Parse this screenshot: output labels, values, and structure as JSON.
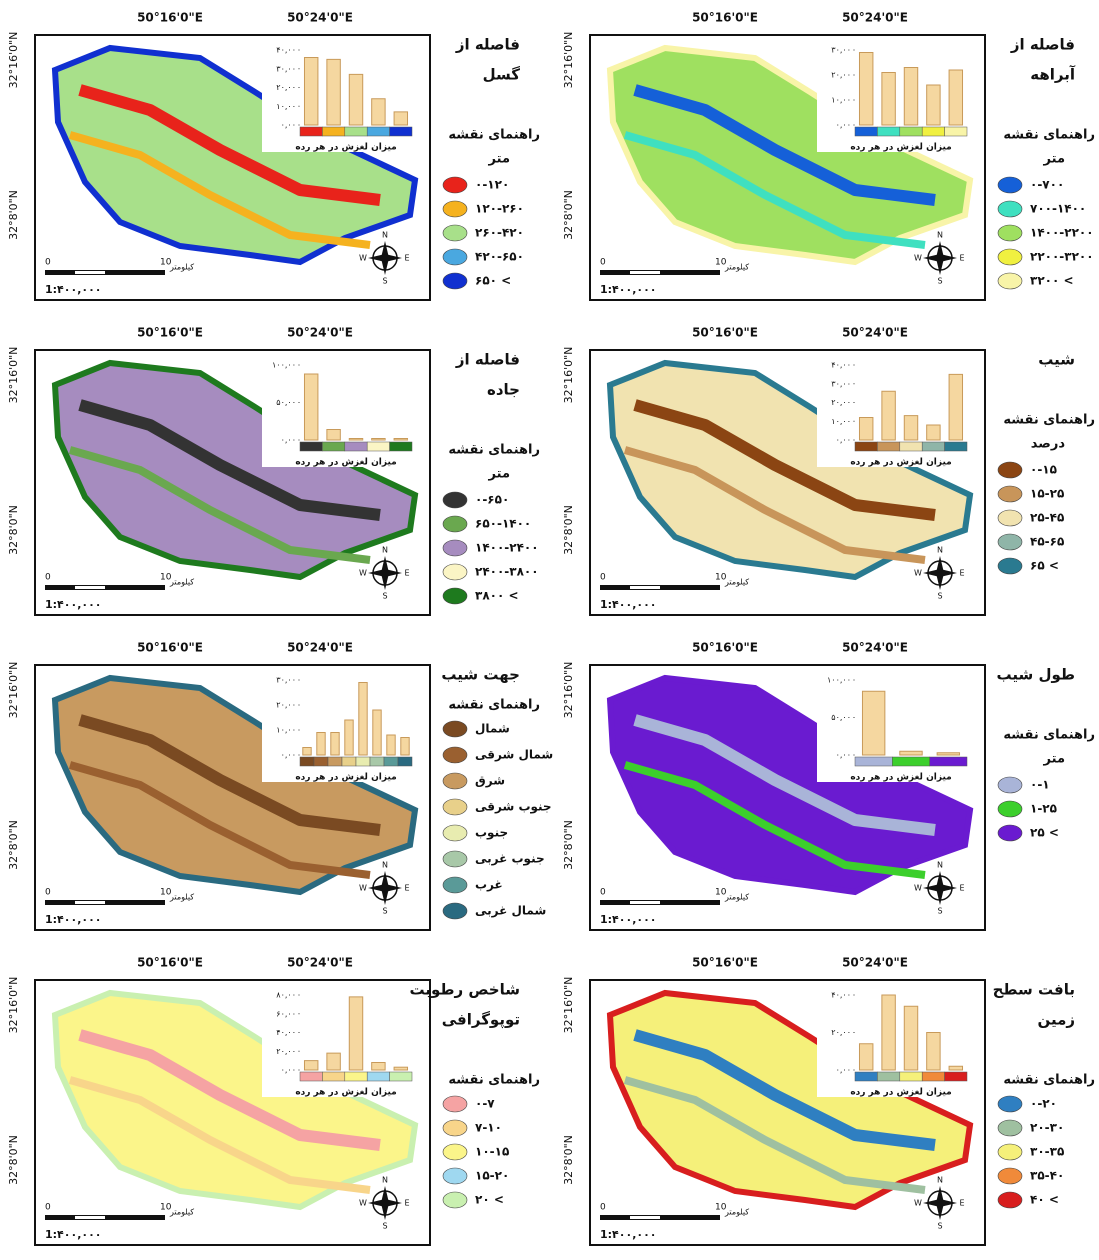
{
  "common": {
    "lon": [
      "50°16'0\"E",
      "50°24'0\"E"
    ],
    "lat": [
      "32°16'0\"N",
      "32°8'0\"N"
    ],
    "scale": "1:۴۰۰,۰۰۰",
    "scale_ticks": [
      "0",
      "10"
    ],
    "km": "کیلومتر",
    "compass": [
      "N",
      "S",
      "W",
      "E"
    ],
    "legend_title": "راهنمای نقشه",
    "chart_caption": "میزان لغزش در هر رده"
  },
  "panels": [
    {
      "title": [
        "فاصله از",
        "گسل"
      ],
      "unit": "متر",
      "legend": [
        {
          "label": "۰-۱۲۰",
          "color": "#e8231b"
        },
        {
          "label": "۱۲۰-۲۶۰",
          "color": "#f5b21f"
        },
        {
          "label": "۲۶۰-۴۲۰",
          "color": "#a8e08a"
        },
        {
          "label": "۴۲۰-۶۵۰",
          "color": "#4aa8e0"
        },
        {
          "label": "۶۵۰ <",
          "color": "#1030d0"
        }
      ],
      "chart": {
        "ylim": [
          0,
          40
        ],
        "yticks": [
          {
            "value": 0,
            "label": "۰,۰۰"
          },
          {
            "value": 10,
            "label": "۱۰,۰۰"
          },
          {
            "value": 20,
            "label": "۲۰,۰۰"
          },
          {
            "value": 30,
            "label": "۳۰,۰۰"
          },
          {
            "value": 40,
            "label": "۴۰,۰۰"
          }
        ],
        "values": [
          36,
          35,
          27,
          14,
          7
        ]
      }
    },
    {
      "title": [
        "فاصله از",
        "آبراهه"
      ],
      "unit": "متر",
      "legend": [
        {
          "label": "۰-۷۰۰",
          "color": "#1560d8"
        },
        {
          "label": "۷۰۰-۱۴۰۰",
          "color": "#3fe0c0"
        },
        {
          "label": "۱۴۰۰-۲۲۰۰",
          "color": "#9fe060"
        },
        {
          "label": "۲۲۰۰-۳۲۰۰",
          "color": "#f0f040"
        },
        {
          "label": "۳۲۰۰ <",
          "color": "#f8f4a8"
        }
      ],
      "chart": {
        "ylim": [
          0,
          30
        ],
        "yticks": [
          {
            "value": 0,
            "label": "۰,۰۰"
          },
          {
            "value": 10,
            "label": "۱۰,۰۰"
          },
          {
            "value": 20,
            "label": "۲۰,۰۰"
          },
          {
            "value": 30,
            "label": "۳۰,۰۰"
          }
        ],
        "values": [
          29,
          21,
          23,
          16,
          22
        ]
      }
    },
    {
      "title": [
        "فاصله از",
        "جاده"
      ],
      "unit": "متر",
      "legend": [
        {
          "label": "۰-۶۵۰",
          "color": "#333333"
        },
        {
          "label": "۶۵۰-۱۴۰۰",
          "color": "#6aa84f"
        },
        {
          "label": "۱۴۰۰-۲۴۰۰",
          "color": "#a68cbf"
        },
        {
          "label": "۲۴۰۰-۳۸۰۰",
          "color": "#fbf5c5"
        },
        {
          "label": "۳۸۰۰ <",
          "color": "#1e7a1e"
        }
      ],
      "chart": {
        "ylim": [
          0,
          100
        ],
        "yticks": [
          {
            "value": 0,
            "label": "۰,۰۰"
          },
          {
            "value": 50,
            "label": "۵۰,۰۰"
          },
          {
            "value": 100,
            "label": "۱۰۰,۰۰"
          }
        ],
        "values": [
          88,
          14,
          2,
          2,
          2
        ]
      }
    },
    {
      "title": [
        "شیب"
      ],
      "unit": "درصد",
      "legend": [
        {
          "label": "۰-۱۵",
          "color": "#8b4513"
        },
        {
          "label": "۱۵-۲۵",
          "color": "#c8955a"
        },
        {
          "label": "۲۵-۴۵",
          "color": "#f1e3b0"
        },
        {
          "label": "۴۵-۶۵",
          "color": "#8fb5a8"
        },
        {
          "label": "۶۵ <",
          "color": "#2a7a90"
        }
      ],
      "chart": {
        "ylim": [
          0,
          40
        ],
        "yticks": [
          {
            "value": 0,
            "label": "۰,۰۰"
          },
          {
            "value": 10,
            "label": "۱۰,۰۰"
          },
          {
            "value": 20,
            "label": "۲۰,۰۰"
          },
          {
            "value": 30,
            "label": "۳۰,۰۰"
          },
          {
            "value": 40,
            "label": "۴۰,۰۰"
          }
        ],
        "values": [
          12,
          26,
          13,
          8,
          35
        ]
      }
    },
    {
      "title": [
        "جهت شیب"
      ],
      "legend": [
        {
          "label": "شمال",
          "color": "#7a4a22"
        },
        {
          "label": "شمال شرقی",
          "color": "#9a6030"
        },
        {
          "label": "شرق",
          "color": "#c89a60"
        },
        {
          "label": "جنوب شرقی",
          "color": "#e8d08a"
        },
        {
          "label": "جنوب",
          "color": "#e8ecb0"
        },
        {
          "label": "جنوب غربی",
          "color": "#a8c8a8"
        },
        {
          "label": "غرب",
          "color": "#5a9a98"
        },
        {
          "label": "شمال غربی",
          "color": "#2a6a80"
        }
      ],
      "chart": {
        "ylim": [
          0,
          30
        ],
        "yticks": [
          {
            "value": 0,
            "label": "۰,۰۰"
          },
          {
            "value": 10,
            "label": "۱۰,۰۰"
          },
          {
            "value": 20,
            "label": "۲۰,۰۰"
          },
          {
            "value": 30,
            "label": "۳۰,۰۰"
          }
        ],
        "values": [
          3,
          9,
          9,
          14,
          29,
          18,
          8,
          7
        ]
      }
    },
    {
      "title": [
        "طول شیب"
      ],
      "unit": "متر",
      "legend": [
        {
          "label": "۰-۱",
          "color": "#a9b4d8"
        },
        {
          "label": "۱-۲۵",
          "color": "#3ccf2c"
        },
        {
          "label": "۲۵ <",
          "color": "#6a1bd0"
        }
      ],
      "chart": {
        "ylim": [
          0,
          100
        ],
        "yticks": [
          {
            "value": 0,
            "label": "۰,۰۰"
          },
          {
            "value": 50,
            "label": "۵۰,۰۰"
          },
          {
            "value": 100,
            "label": "۱۰۰,۰۰"
          }
        ],
        "values": [
          85,
          5,
          3
        ]
      }
    },
    {
      "title": [
        "شاخص رطوبت",
        "توپوگرافی"
      ],
      "legend": [
        {
          "label": "۰-۷",
          "color": "#f5a3a3"
        },
        {
          "label": "۷-۱۰",
          "color": "#f8d58a"
        },
        {
          "label": "۱۰-۱۵",
          "color": "#fbf58a"
        },
        {
          "label": "۱۵-۲۰",
          "color": "#9fd8f0"
        },
        {
          "label": "۲۰ <",
          "color": "#c9f0b0"
        }
      ],
      "chart": {
        "ylim": [
          0,
          80
        ],
        "yticks": [
          {
            "value": 0,
            "label": "۰,۰۰"
          },
          {
            "value": 20,
            "label": "۲۰,۰۰"
          },
          {
            "value": 40,
            "label": "۴۰,۰۰"
          },
          {
            "value": 60,
            "label": "۶۰,۰۰"
          },
          {
            "value": 80,
            "label": "۸۰,۰۰"
          }
        ],
        "values": [
          10,
          18,
          78,
          8,
          3
        ]
      }
    },
    {
      "title": [
        "بافت سطح",
        "زمین"
      ],
      "legend": [
        {
          "label": "۰-۲۰",
          "color": "#2f7fc1"
        },
        {
          "label": "۲۰-۳۰",
          "color": "#9fc0a0"
        },
        {
          "label": "۳۰-۳۵",
          "color": "#f5f07a"
        },
        {
          "label": "۳۵-۴۰",
          "color": "#f08a3a"
        },
        {
          "label": "۴۰ <",
          "color": "#d81e1e"
        }
      ],
      "chart": {
        "ylim": [
          0,
          40
        ],
        "yticks": [
          {
            "value": 0,
            "label": "۰,۰۰"
          },
          {
            "value": 20,
            "label": "۲۰,۰۰"
          },
          {
            "value": 40,
            "label": "۴۰,۰۰"
          }
        ],
        "values": [
          14,
          40,
          34,
          20,
          2
        ]
      }
    }
  ]
}
